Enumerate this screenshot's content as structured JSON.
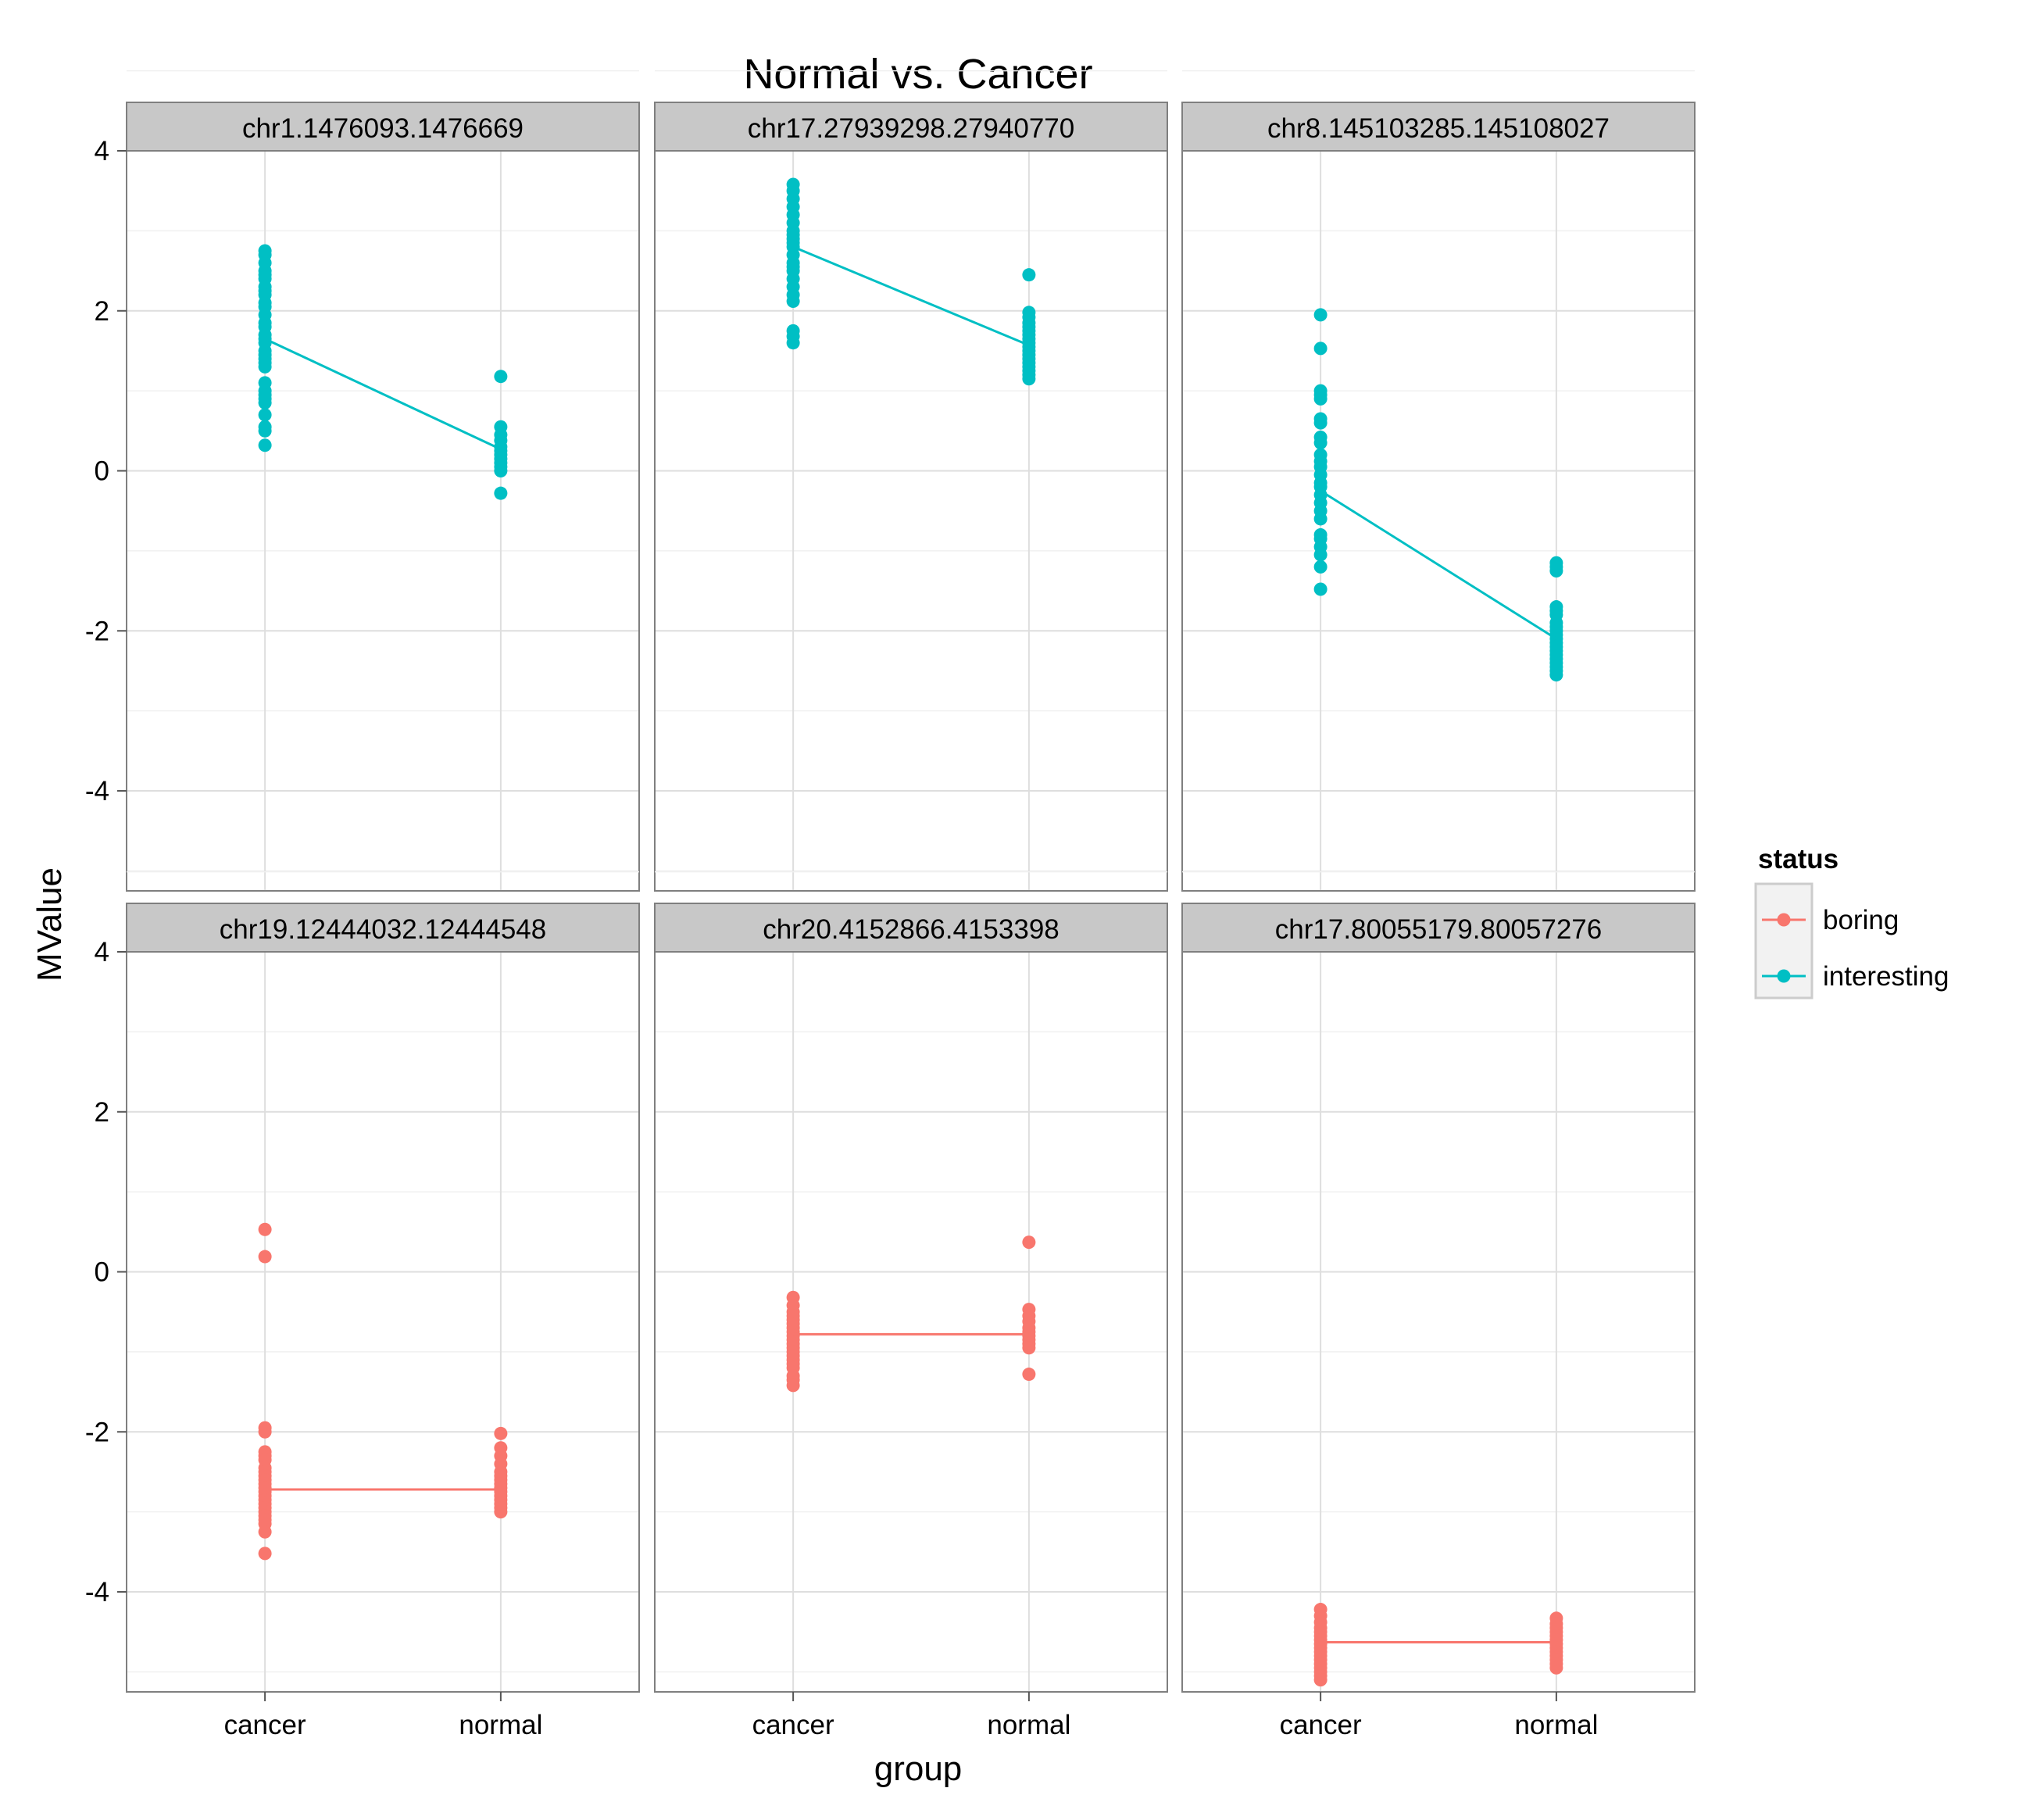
{
  "chart_data": {
    "type": "scatter",
    "title": "Normal vs. Cancer",
    "xlabel": "group",
    "ylabel": "MValue",
    "categories": [
      "cancer",
      "normal"
    ],
    "ylim": [
      -5.25,
      4
    ],
    "yticks": [
      4,
      2,
      0,
      -2,
      -4
    ],
    "ytick_labels": [
      "4",
      "2",
      "0",
      "-2",
      "-4"
    ],
    "grid": true,
    "legend": {
      "title": "status",
      "position": "right",
      "entries": [
        {
          "label": "boring",
          "color": "#F8766D"
        },
        {
          "label": "interesting",
          "color": "#00BFC4"
        }
      ]
    },
    "panels": [
      {
        "title": "chr1.1476093.1476669",
        "status": "interesting",
        "mean_line": [
          1.65,
          0.27
        ],
        "points": {
          "cancer": [
            2.75,
            2.7,
            2.6,
            2.5,
            2.45,
            2.4,
            2.3,
            2.25,
            2.2,
            2.1,
            2.05,
            1.95,
            1.85,
            1.8,
            1.7,
            1.65,
            1.6,
            1.5,
            1.45,
            1.4,
            1.35,
            1.3,
            1.1,
            1.0,
            0.95,
            0.9,
            0.85,
            0.7,
            0.55,
            0.5,
            0.32
          ],
          "normal": [
            1.18,
            0.55,
            0.45,
            0.38,
            0.3,
            0.25,
            0.2,
            0.15,
            0.1,
            0.05,
            0.0,
            -0.28
          ]
        }
      },
      {
        "title": "chr17.27939298.27940770",
        "status": "interesting",
        "mean_line": [
          2.8,
          1.57
        ],
        "points": {
          "cancer": [
            3.58,
            3.5,
            3.4,
            3.3,
            3.2,
            3.1,
            3.0,
            2.95,
            2.9,
            2.85,
            2.8,
            2.7,
            2.6,
            2.55,
            2.5,
            2.4,
            2.3,
            2.2,
            2.12,
            1.75,
            1.68,
            1.6
          ],
          "normal": [
            2.45,
            1.98,
            1.92,
            1.85,
            1.8,
            1.75,
            1.7,
            1.65,
            1.6,
            1.55,
            1.5,
            1.45,
            1.4,
            1.35,
            1.3,
            1.25,
            1.2,
            1.15
          ]
        }
      },
      {
        "title": "chr8.145103285.145108027",
        "status": "interesting",
        "mean_line": [
          -0.25,
          -2.1
        ],
        "points": {
          "cancer": [
            1.95,
            1.53,
            1.0,
            0.95,
            0.9,
            0.65,
            0.6,
            0.42,
            0.35,
            0.2,
            0.12,
            0.05,
            -0.05,
            -0.15,
            -0.2,
            -0.3,
            -0.4,
            -0.5,
            -0.6,
            -0.8,
            -0.85,
            -0.95,
            -1.05,
            -1.2,
            -1.48
          ],
          "normal": [
            -1.15,
            -1.2,
            -1.25,
            -1.7,
            -1.75,
            -1.8,
            -1.9,
            -1.95,
            -2.0,
            -2.05,
            -2.1,
            -2.15,
            -2.2,
            -2.25,
            -2.3,
            -2.35,
            -2.4,
            -2.45,
            -2.5,
            -2.55
          ]
        }
      },
      {
        "title": "chr19.12444032.12444548",
        "status": "boring",
        "mean_line": [
          -2.72,
          -2.72
        ],
        "points": {
          "cancer": [
            0.53,
            0.19,
            -1.95,
            -2.0,
            -2.25,
            -2.3,
            -2.35,
            -2.45,
            -2.5,
            -2.55,
            -2.6,
            -2.65,
            -2.7,
            -2.75,
            -2.8,
            -2.85,
            -2.9,
            -2.95,
            -3.0,
            -3.05,
            -3.1,
            -3.15,
            -3.25,
            -3.52
          ],
          "normal": [
            -2.02,
            -2.2,
            -2.3,
            -2.4,
            -2.5,
            -2.55,
            -2.6,
            -2.65,
            -2.7,
            -2.75,
            -2.8,
            -2.85,
            -2.9,
            -2.95,
            -3.0
          ]
        }
      },
      {
        "title": "chr20.4152866.4153398",
        "status": "boring",
        "mean_line": [
          -0.78,
          -0.78
        ],
        "points": {
          "cancer": [
            -0.32,
            -0.42,
            -0.5,
            -0.55,
            -0.6,
            -0.65,
            -0.7,
            -0.75,
            -0.8,
            -0.85,
            -0.9,
            -0.95,
            -1.0,
            -1.05,
            -1.1,
            -1.15,
            -1.2,
            -1.3,
            -1.35,
            -1.42
          ],
          "normal": [
            0.37,
            -0.47,
            -0.55,
            -0.62,
            -0.7,
            -0.75,
            -0.8,
            -0.85,
            -0.9,
            -0.95,
            -1.28
          ]
        }
      },
      {
        "title": "chr17.80055179.80057276",
        "status": "boring",
        "mean_line": [
          -4.63,
          -4.63
        ],
        "points": {
          "cancer": [
            -4.22,
            -4.3,
            -4.38,
            -4.45,
            -4.5,
            -4.55,
            -4.6,
            -4.65,
            -4.7,
            -4.75,
            -4.8,
            -4.85,
            -4.9,
            -4.95,
            -5.0,
            -5.05,
            -5.1
          ],
          "normal": [
            -4.33,
            -4.4,
            -4.45,
            -4.5,
            -4.55,
            -4.6,
            -4.65,
            -4.7,
            -4.75,
            -4.8,
            -4.85,
            -4.9,
            -4.95
          ]
        }
      }
    ]
  }
}
